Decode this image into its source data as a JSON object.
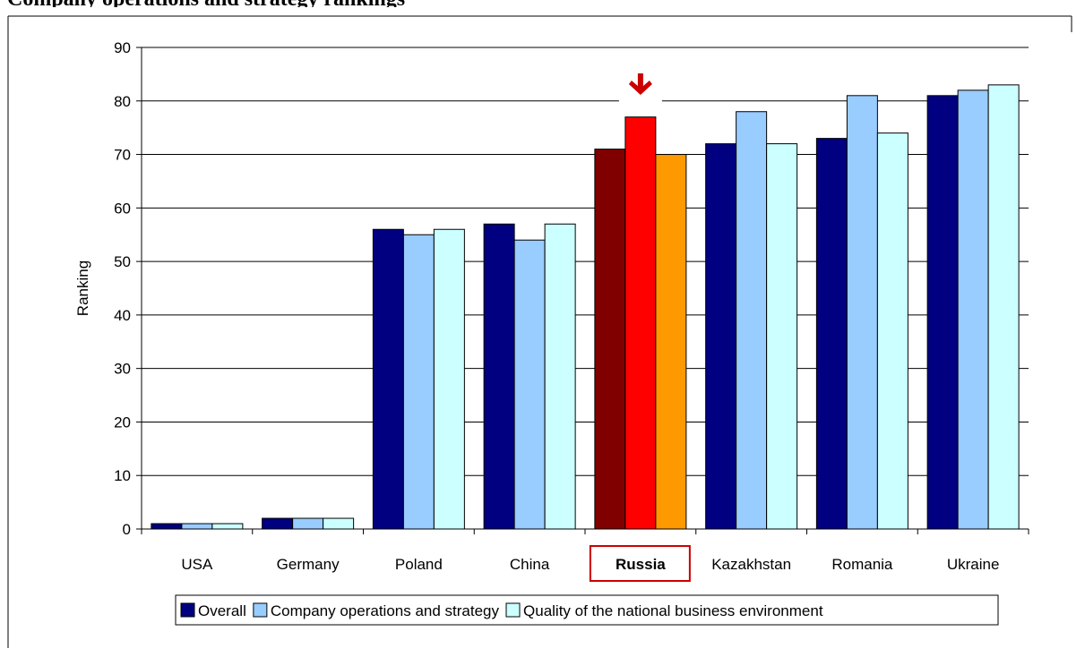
{
  "caption": "Company operations and strategy rankings",
  "chart_data": {
    "type": "bar",
    "categories": [
      "USA",
      "Germany",
      "Poland",
      "China",
      "Russia",
      "Kazakhstan",
      "Romania",
      "Ukraine"
    ],
    "series": [
      {
        "name": "Overall",
        "values": [
          1,
          2,
          56,
          57,
          71,
          72,
          73,
          81
        ]
      },
      {
        "name": "Company operations and strategy",
        "values": [
          1,
          2,
          55,
          54,
          77,
          78,
          81,
          82
        ]
      },
      {
        "name": "Quality of the national business environment",
        "values": [
          1,
          2,
          56,
          57,
          70,
          72,
          74,
          83
        ]
      }
    ],
    "ylabel": "Ranking",
    "ylim": [
      0,
      90
    ],
    "yticks": [
      0,
      10,
      20,
      30,
      40,
      50,
      60,
      70,
      80,
      90
    ],
    "grid": true,
    "legend": "bottom",
    "highlight": {
      "category": "Russia",
      "marker": "down-arrow"
    },
    "colors": {
      "series": [
        "#000080",
        "#99ccff",
        "#ccffff"
      ],
      "highlight": [
        "#800000",
        "#ff0000",
        "#ff9900"
      ],
      "box": "#cc0000"
    }
  }
}
